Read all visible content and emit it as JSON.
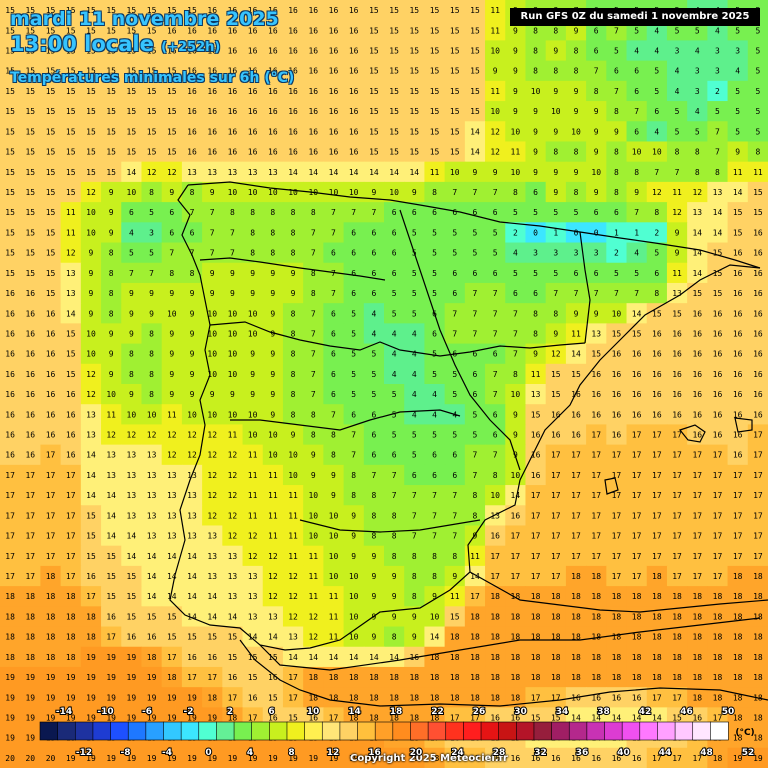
{
  "header": {
    "date_line": "mardi 11 novembre 2025",
    "time_line": "13:00 locale",
    "lead_time": "(+252h)",
    "subtitle": "Températures minimales sur 6h (°C)"
  },
  "run_label": "Run GFS 0Z du samedi 1 novembre 2025",
  "copyright": "Copyright 2025 Meteociel.fr",
  "legend": {
    "unit": "(°C)",
    "top_labels": [
      "-14",
      "-10",
      "-6",
      "-2",
      "2",
      "6",
      "10",
      "14",
      "18",
      "22",
      "26",
      "30",
      "34",
      "38",
      "42",
      "46",
      "50"
    ],
    "bottom_labels": [
      "-12",
      "-8",
      "-4",
      "0",
      "4",
      "8",
      "12",
      "16",
      "20",
      "24",
      "28",
      "32",
      "36",
      "40",
      "44",
      "48",
      "52"
    ],
    "colors": [
      "#0a1850",
      "#1a2a78",
      "#1e32a0",
      "#1e3cd2",
      "#1e50ff",
      "#1e78ff",
      "#28a0ff",
      "#32c8ff",
      "#3ce6ff",
      "#50ffd2",
      "#64f096",
      "#78f050",
      "#a0f032",
      "#c8f01e",
      "#f0f01e",
      "#fff050",
      "#ffe678",
      "#ffd264",
      "#ffc03c",
      "#ffa028",
      "#ff8c1e",
      "#ff6e28",
      "#ff5032",
      "#ff321e",
      "#ff1e1e",
      "#e61414",
      "#c81414",
      "#b41428",
      "#961e3c",
      "#a01e64",
      "#b4288c",
      "#c832b4",
      "#dc3cd2",
      "#f050f0",
      "#ff78ff",
      "#ffa0ff",
      "#ffc8ff",
      "#ffe6ff",
      "#ffffff"
    ]
  },
  "grid": {
    "rows": [
      "15 15 15 15 15 15 15 15 15 15 16 16 16 16 16 16 16 16 15 15 15 15 15 15 11 9 8 8 7 6 5 5 5 5 4 4 5 5",
      "15 15 15 15 15 15 15 15 16 16 16 16 16 16 16 16 16 16 15 15 15 15 15 15 11 9 8 8 9 6 7 5 4 5 5 4 5 5",
      "15 15 15 15 15 15 15 15 16 16 16 16 16 16 16 16 16 16 15 15 15 15 15 15 10 9 8 9 8 6 5 4 4 3 4 3 3 5",
      "15 15 15 15 15 15 15 15 15 16 16 16 16 16 16 16 16 16 15 15 15 15 15 15 9 9 8 8 8 7 6 6 5 4 3 3 4 5",
      "15 15 15 15 15 15 15 15 15 16 16 16 16 16 16 16 16 16 15 15 15 15 15 15 11 9 10 9 9 8 7 6 5 4 3 2 5 5",
      "15 15 15 15 15 15 15 15 15 16 16 16 16 16 16 16 16 16 15 15 15 15 15 15 10 9 9 10 9 9 8 7 6 5 4 5 5 5",
      "15 15 15 15 15 15 15 15 15 16 16 16 16 16 16 16 16 16 15 15 15 15 15 14 12 10 9 9 10 9 9 6 4 5 5 7 5 5",
      "15 15 15 15 15 15 15 15 15 16 16 16 16 16 16 16 16 16 15 15 15 15 15 14 12 11 9 8 8 9 8 10 10 8 8 7 9 8",
      "15 15 15 15 15 15 14 12 12 13 13 13 13 13 14 14 14 14 14 14 14 11 10 9 9 10 9 9 9 10 8 8 7 7 8 8 11 11",
      "15 15 15 15 12 9 10 8 9 8 9 10 10 10 10 10 10 10 9 10 9 8 7 7 7 8 6 9 8 9 8 9 12 11 12 13 14 15",
      "15 15 15 11 10 9 6 5 6 7 7 8 8 8 8 8 7 7 7 6 6 6 6 6 6 5 5 5 5 6 6 7 8 12 13 14 15 15",
      "15 15 15 11 10 9 4 3 6 6 7 7 8 8 8 7 7 6 6 6 5 5 5 5 5 2 0 1 0 0 1 1 2 9 14 14 15 16",
      "15 15 15 12 9 8 5 5 7 7 7 7 8 8 8 7 6 6 6 6 5 5 5 5 5 4 3 3 3 3 2 4 5 9 14 15 16 16",
      "15 15 15 13 9 8 7 7 8 8 9 9 9 9 9 8 7 6 6 6 5 5 6 6 6 5 5 5 6 6 5 5 6 11 14 15 16 16",
      "16 16 15 13 9 8 9 9 9 9 9 9 9 9 9 8 7 6 6 5 5 5 6 7 7 6 6 7 7 7 7 7 8 13 15 15 16 16",
      "16 16 16 14 9 8 9 9 10 9 10 10 10 9 8 7 6 5 4 5 5 6 7 7 7 7 8 8 9 9 10 14 15 15 16 16 16 16",
      "16 16 16 15 10 9 9 8 9 9 10 10 10 9 8 7 6 5 4 4 4 6 7 7 7 7 8 9 11 13 15 15 16 16 16 16 16 16",
      "16 16 16 15 10 9 8 8 9 9 10 10 9 9 8 7 6 5 5 4 4 5 6 6 6 7 9 12 14 15 16 16 16 16 16 16 16 16",
      "16 16 16 15 12 9 8 8 9 9 10 10 9 9 8 7 6 5 5 4 4 5 5 6 7 8 11 15 15 16 16 16 16 16 16 16 16 16",
      "16 16 16 16 12 10 9 8 9 9 9 9 9 9 8 7 6 5 5 5 4 4 5 6 7 10 13 15 16 16 16 16 16 16 16 16 16 16",
      "16 16 16 16 13 11 10 10 11 10 10 10 10 9 8 8 7 6 6 5 4 4 4 5 6 9 15 16 16 16 16 16 16 16 16 16 16 16",
      "16 16 16 16 13 12 12 12 12 12 12 11 10 10 9 8 8 7 6 5 5 5 5 5 6 9 16 16 16 17 16 17 17 17 16 16 16 17",
      "16 16 17 16 14 13 13 13 12 12 12 12 11 10 10 9 8 7 6 6 5 6 6 7 7 9 16 17 17 17 17 17 17 17 17 17 16 17",
      "17 17 17 17 14 13 13 13 13 13 12 12 11 11 10 9 9 8 7 7 6 6 6 7 8 10 16 17 17 17 17 17 17 17 17 17 17 17",
      "17 17 17 17 14 14 13 13 13 13 12 12 11 11 11 10 9 8 8 7 7 7 7 8 10 14 17 17 17 17 17 17 17 17 17 17 17 17",
      "17 17 17 17 15 14 13 13 13 13 12 12 11 11 11 10 10 9 8 8 7 7 7 8 13 16 17 17 17 17 17 17 17 17 17 17 17 17",
      "17 17 17 17 15 14 14 13 13 13 13 12 12 11 11 10 10 9 8 8 7 7 7 9 16 17 17 17 17 17 17 17 17 17 17 17 17 17",
      "17 17 17 17 15 15 14 14 14 14 13 13 12 12 11 11 10 9 9 8 8 8 8 11 17 17 17 17 17 17 17 17 17 17 17 17 17 17",
      "17 17 18 17 16 15 15 14 14 14 13 13 13 12 12 11 10 10 9 9 8 8 9 14 17 17 17 17 18 18 17 17 18 17 17 17 18 18",
      "18 18 18 18 17 15 15 14 14 14 14 13 13 12 12 11 11 10 9 9 8 9 11 17 18 18 18 18 18 18 18 18 18 18 18 18 18 18",
      "18 18 18 18 18 16 15 15 15 14 14 14 13 13 12 12 11 10 9 9 9 10 15 18 18 18 18 18 18 18 18 18 18 18 18 18 18 18",
      "18 18 18 18 18 17 16 16 15 15 15 15 14 14 13 12 11 10 9 8 9 14 18 18 18 18 18 18 18 18 18 18 18 18 18 18 18 18",
      "18 18 18 18 19 19 19 18 17 16 16 15 15 15 14 14 14 14 14 14 16 18 18 18 18 18 18 18 18 18 18 18 18 18 18 18 18 18",
      "19 19 19 19 19 19 19 19 18 17 17 16 15 16 17 18 18 18 18 18 18 18 18 18 18 18 18 18 18 18 18 18 18 18 18 18 18 18",
      "19 19 19 19 19 19 19 19 19 19 18 17 16 15 17 18 18 18 18 18 18 18 18 18 18 18 17 17 16 16 16 16 17 17 18 18 18 18",
      "19 19 19 19 19 19 19 19 19 19 19 18 17 16 15 16 17 18 18 18 18 18 17 17 16 16 15 15 14 14 14 14 14 15 16 17 18 18",
      "19 19 19 19 19 19 19 19 19 19 19 19 19 19 19 19 19 19 19 18 18 17 16 16 15 15 14 14 14 14 14 15 16 16 17 18 18 18",
      "20 20 20 19 19 19 19 19 19 19 19 19 19 19 19 19 19 19 19 19 19 18 17 17 16 16 16 16 16 16 16 16 17 17 17 18 19 19"
    ]
  }
}
